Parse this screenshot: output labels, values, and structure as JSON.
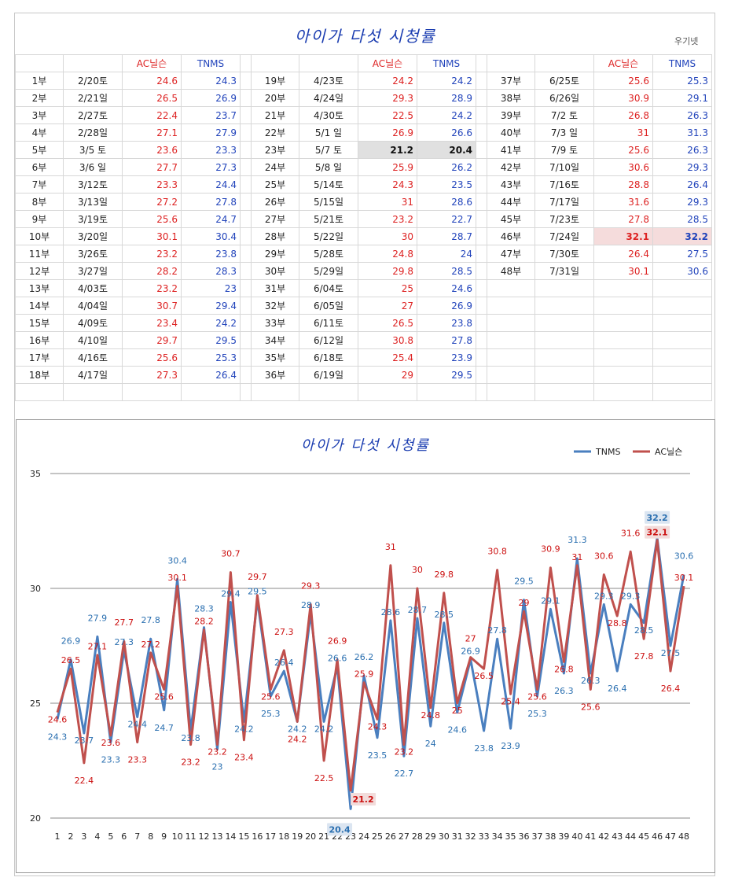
{
  "header": {
    "title": "아이가 다섯 시청률",
    "credit": "우기넷"
  },
  "table": {
    "headers": {
      "ac": "AC닐슨",
      "tnms": "TNMS"
    },
    "rows": [
      [
        {
          "ep": "1부",
          "date": "2/20토",
          "ac": "24.6",
          "tn": "24.3"
        },
        {
          "ep": "19부",
          "date": "4/23토",
          "ac": "24.2",
          "tn": "24.2"
        },
        {
          "ep": "37부",
          "date": "6/25토",
          "ac": "25.6",
          "tn": "25.3"
        }
      ],
      [
        {
          "ep": "2부",
          "date": "2/21일",
          "ac": "26.5",
          "tn": "26.9"
        },
        {
          "ep": "20부",
          "date": "4/24일",
          "ac": "29.3",
          "tn": "28.9"
        },
        {
          "ep": "38부",
          "date": "6/26일",
          "ac": "30.9",
          "tn": "29.1"
        }
      ],
      [
        {
          "ep": "3부",
          "date": "2/27토",
          "ac": "22.4",
          "tn": "23.7"
        },
        {
          "ep": "21부",
          "date": "4/30토",
          "ac": "22.5",
          "tn": "24.2"
        },
        {
          "ep": "39부",
          "date": "7/2 토",
          "ac": "26.8",
          "tn": "26.3"
        }
      ],
      [
        {
          "ep": "4부",
          "date": "2/28일",
          "ac": "27.1",
          "tn": "27.9"
        },
        {
          "ep": "22부",
          "date": "5/1 일",
          "ac": "26.9",
          "tn": "26.6"
        },
        {
          "ep": "40부",
          "date": "7/3 일",
          "ac": "31",
          "tn": "31.3"
        }
      ],
      [
        {
          "ep": "5부",
          "date": "3/5 토",
          "ac": "23.6",
          "tn": "23.3"
        },
        {
          "ep": "23부",
          "date": "5/7 토",
          "ac": "21.2",
          "tn": "20.4"
        },
        {
          "ep": "41부",
          "date": "7/9 토",
          "ac": "25.6",
          "tn": "26.3"
        }
      ],
      [
        {
          "ep": "6부",
          "date": "3/6 일",
          "ac": "27.7",
          "tn": "27.3"
        },
        {
          "ep": "24부",
          "date": "5/8 일",
          "ac": "25.9",
          "tn": "26.2"
        },
        {
          "ep": "42부",
          "date": "7/10일",
          "ac": "30.6",
          "tn": "29.3"
        }
      ],
      [
        {
          "ep": "7부",
          "date": "3/12토",
          "ac": "23.3",
          "tn": "24.4"
        },
        {
          "ep": "25부",
          "date": "5/14토",
          "ac": "24.3",
          "tn": "23.5"
        },
        {
          "ep": "43부",
          "date": "7/16토",
          "ac": "28.8",
          "tn": "26.4"
        }
      ],
      [
        {
          "ep": "8부",
          "date": "3/13일",
          "ac": "27.2",
          "tn": "27.8"
        },
        {
          "ep": "26부",
          "date": "5/15일",
          "ac": "31",
          "tn": "28.6"
        },
        {
          "ep": "44부",
          "date": "7/17일",
          "ac": "31.6",
          "tn": "29.3"
        }
      ],
      [
        {
          "ep": "9부",
          "date": "3/19토",
          "ac": "25.6",
          "tn": "24.7"
        },
        {
          "ep": "27부",
          "date": "5/21토",
          "ac": "23.2",
          "tn": "22.7"
        },
        {
          "ep": "45부",
          "date": "7/23토",
          "ac": "27.8",
          "tn": "28.5"
        }
      ],
      [
        {
          "ep": "10부",
          "date": "3/20일",
          "ac": "30.1",
          "tn": "30.4"
        },
        {
          "ep": "28부",
          "date": "5/22일",
          "ac": "30",
          "tn": "28.7"
        },
        {
          "ep": "46부",
          "date": "7/24일",
          "ac": "32.1",
          "tn": "32.2"
        }
      ],
      [
        {
          "ep": "11부",
          "date": "3/26토",
          "ac": "23.2",
          "tn": "23.8"
        },
        {
          "ep": "29부",
          "date": "5/28토",
          "ac": "24.8",
          "tn": "24"
        },
        {
          "ep": "47부",
          "date": "7/30토",
          "ac": "26.4",
          "tn": "27.5"
        }
      ],
      [
        {
          "ep": "12부",
          "date": "3/27일",
          "ac": "28.2",
          "tn": "28.3"
        },
        {
          "ep": "30부",
          "date": "5/29일",
          "ac": "29.8",
          "tn": "28.5"
        },
        {
          "ep": "48부",
          "date": "7/31일",
          "ac": "30.1",
          "tn": "30.6"
        }
      ],
      [
        {
          "ep": "13부",
          "date": "4/03토",
          "ac": "23.2",
          "tn": "23"
        },
        {
          "ep": "31부",
          "date": "6/04토",
          "ac": "25",
          "tn": "24.6"
        },
        null
      ],
      [
        {
          "ep": "14부",
          "date": "4/04일",
          "ac": "30.7",
          "tn": "29.4"
        },
        {
          "ep": "32부",
          "date": "6/05일",
          "ac": "27",
          "tn": "26.9"
        },
        null
      ],
      [
        {
          "ep": "15부",
          "date": "4/09토",
          "ac": "23.4",
          "tn": "24.2"
        },
        {
          "ep": "33부",
          "date": "6/11토",
          "ac": "26.5",
          "tn": "23.8"
        },
        null
      ],
      [
        {
          "ep": "16부",
          "date": "4/10일",
          "ac": "29.7",
          "tn": "29.5"
        },
        {
          "ep": "34부",
          "date": "6/12일",
          "ac": "30.8",
          "tn": "27.8"
        },
        null
      ],
      [
        {
          "ep": "17부",
          "date": "4/16토",
          "ac": "25.6",
          "tn": "25.3"
        },
        {
          "ep": "35부",
          "date": "6/18토",
          "ac": "25.4",
          "tn": "23.9"
        },
        null
      ],
      [
        {
          "ep": "18부",
          "date": "4/17일",
          "ac": "27.3",
          "tn": "26.4"
        },
        {
          "ep": "36부",
          "date": "6/19일",
          "ac": "29",
          "tn": "29.5"
        },
        null
      ]
    ]
  },
  "chart_data": {
    "type": "line",
    "title": "아이가 다섯 시청률",
    "x": [
      1,
      2,
      3,
      4,
      5,
      6,
      7,
      8,
      9,
      10,
      11,
      12,
      13,
      14,
      15,
      16,
      17,
      18,
      19,
      20,
      21,
      22,
      23,
      24,
      25,
      26,
      27,
      28,
      29,
      30,
      31,
      32,
      33,
      34,
      35,
      36,
      37,
      38,
      39,
      40,
      41,
      42,
      43,
      44,
      45,
      46,
      47,
      48
    ],
    "ylim": [
      20,
      35
    ],
    "yticks": [
      20,
      25,
      30,
      35
    ],
    "grid": true,
    "legend_position": "top-right",
    "series": [
      {
        "name": "TNMS",
        "color": "#4a7fbf",
        "label_color": "#2a6fb0",
        "values": [
          24.3,
          26.9,
          23.7,
          27.9,
          23.3,
          27.3,
          24.4,
          27.8,
          24.7,
          30.4,
          23.8,
          28.3,
          23,
          29.4,
          24.2,
          29.5,
          25.3,
          26.4,
          24.2,
          28.9,
          24.2,
          26.6,
          20.4,
          26.2,
          23.5,
          28.6,
          22.7,
          28.7,
          24,
          28.5,
          24.6,
          26.9,
          23.8,
          27.8,
          23.9,
          29.5,
          25.3,
          29.1,
          26.3,
          31.3,
          26.3,
          29.3,
          26.4,
          29.3,
          28.5,
          32.2,
          27.5,
          30.6
        ]
      },
      {
        "name": "AC닐슨",
        "color": "#c0504d",
        "label_color": "#cc1111",
        "values": [
          24.6,
          26.5,
          22.4,
          27.1,
          23.6,
          27.7,
          23.3,
          27.2,
          25.6,
          30.1,
          23.2,
          28.2,
          23.2,
          30.7,
          23.4,
          29.7,
          25.6,
          27.3,
          24.2,
          29.3,
          22.5,
          26.9,
          21.2,
          25.9,
          24.3,
          31,
          23.2,
          30,
          24.8,
          29.8,
          25,
          27,
          26.5,
          30.8,
          25.4,
          29,
          25.6,
          30.9,
          26.8,
          31,
          25.6,
          30.6,
          28.8,
          31.6,
          27.8,
          32.1,
          26.4,
          30.1
        ]
      }
    ]
  }
}
